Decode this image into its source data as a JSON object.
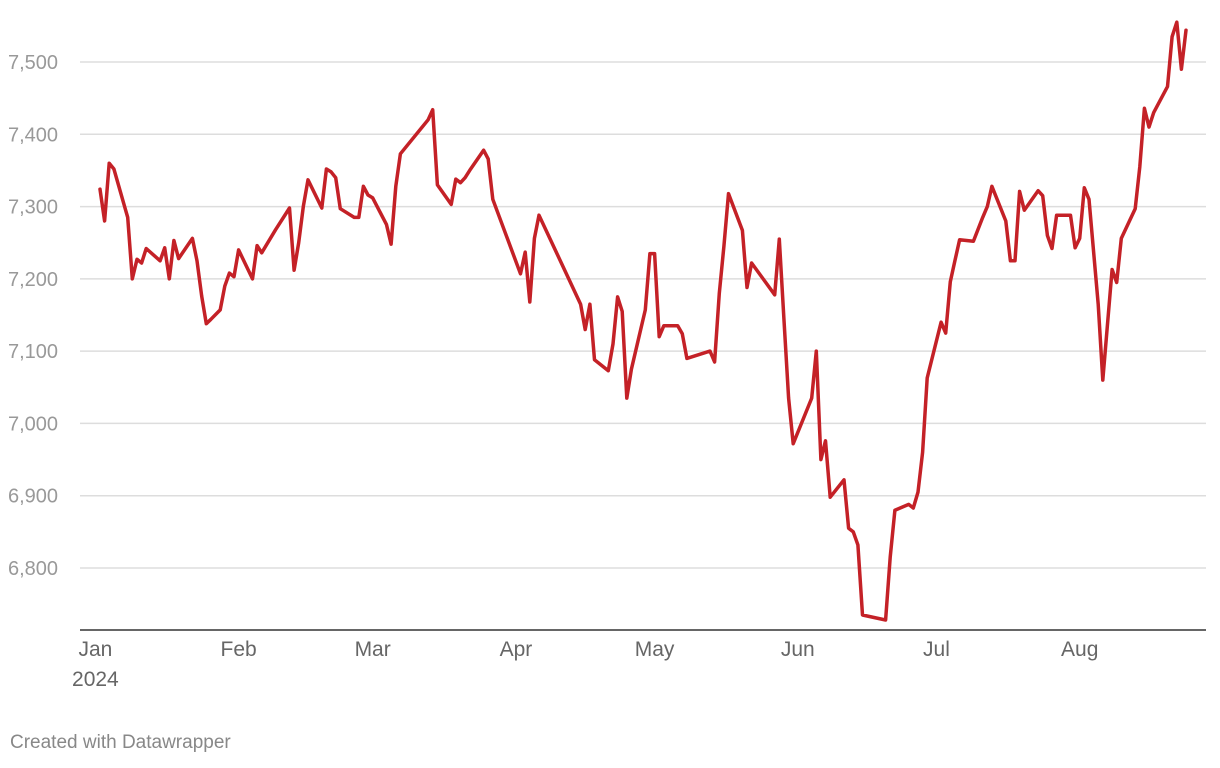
{
  "chart_data": {
    "type": "line",
    "title": "",
    "xlabel": "",
    "ylabel": "",
    "x_range": [
      "2024-01-01",
      "2024-08-27"
    ],
    "ylim": [
      6700,
      7570
    ],
    "y_ticks": [
      {
        "value": 6800,
        "label": "6,800"
      },
      {
        "value": 6900,
        "label": "6,900"
      },
      {
        "value": 7000,
        "label": "7,000"
      },
      {
        "value": 7100,
        "label": "7,100"
      },
      {
        "value": 7200,
        "label": "7,200"
      },
      {
        "value": 7300,
        "label": "7,300"
      },
      {
        "value": 7400,
        "label": "7,400"
      },
      {
        "value": 7500,
        "label": "7,500"
      }
    ],
    "x_ticks": [
      {
        "date": "2024-01-01",
        "label": "Jan",
        "sublabel": "2024"
      },
      {
        "date": "2024-02-01",
        "label": "Feb"
      },
      {
        "date": "2024-03-01",
        "label": "Mar"
      },
      {
        "date": "2024-04-01",
        "label": "Apr"
      },
      {
        "date": "2024-05-01",
        "label": "May"
      },
      {
        "date": "2024-06-01",
        "label": "Jun"
      },
      {
        "date": "2024-07-01",
        "label": "Jul"
      },
      {
        "date": "2024-08-01",
        "label": "Aug"
      }
    ],
    "grid": true,
    "series": [
      {
        "color": "#c42127",
        "points": [
          [
            "2024-01-02",
            7324
          ],
          [
            "2024-01-03",
            7280
          ],
          [
            "2024-01-04",
            7360
          ],
          [
            "2024-01-05",
            7352
          ],
          [
            "2024-01-08",
            7285
          ],
          [
            "2024-01-09",
            7200
          ],
          [
            "2024-01-10",
            7227
          ],
          [
            "2024-01-11",
            7222
          ],
          [
            "2024-01-12",
            7242
          ],
          [
            "2024-01-15",
            7225
          ],
          [
            "2024-01-16",
            7243
          ],
          [
            "2024-01-17",
            7200
          ],
          [
            "2024-01-18",
            7253
          ],
          [
            "2024-01-19",
            7228
          ],
          [
            "2024-01-22",
            7256
          ],
          [
            "2024-01-23",
            7225
          ],
          [
            "2024-01-24",
            7176
          ],
          [
            "2024-01-25",
            7138
          ],
          [
            "2024-01-26",
            7144
          ],
          [
            "2024-01-28",
            7157
          ],
          [
            "2024-01-29",
            7190
          ],
          [
            "2024-01-30",
            7208
          ],
          [
            "2024-01-31",
            7203
          ],
          [
            "2024-02-01",
            7240
          ],
          [
            "2024-02-04",
            7200
          ],
          [
            "2024-02-05",
            7246
          ],
          [
            "2024-02-06",
            7236
          ],
          [
            "2024-02-09",
            7268
          ],
          [
            "2024-02-12",
            7298
          ],
          [
            "2024-02-13",
            7212
          ],
          [
            "2024-02-14",
            7250
          ],
          [
            "2024-02-15",
            7300
          ],
          [
            "2024-02-16",
            7337
          ],
          [
            "2024-02-19",
            7298
          ],
          [
            "2024-02-20",
            7352
          ],
          [
            "2024-02-21",
            7348
          ],
          [
            "2024-02-22",
            7340
          ],
          [
            "2024-02-23",
            7297
          ],
          [
            "2024-02-26",
            7285
          ],
          [
            "2024-02-27",
            7285
          ],
          [
            "2024-02-28",
            7328
          ],
          [
            "2024-02-29",
            7316
          ],
          [
            "2024-03-01",
            7312
          ],
          [
            "2024-03-04",
            7275
          ],
          [
            "2024-03-05",
            7248
          ],
          [
            "2024-03-06",
            7328
          ],
          [
            "2024-03-07",
            7373
          ],
          [
            "2024-03-13",
            7420
          ],
          [
            "2024-03-14",
            7434
          ],
          [
            "2024-03-15",
            7330
          ],
          [
            "2024-03-18",
            7303
          ],
          [
            "2024-03-19",
            7338
          ],
          [
            "2024-03-20",
            7333
          ],
          [
            "2024-03-21",
            7340
          ],
          [
            "2024-03-22",
            7350
          ],
          [
            "2024-03-25",
            7378
          ],
          [
            "2024-03-26",
            7366
          ],
          [
            "2024-03-27",
            7310
          ],
          [
            "2024-04-02",
            7207
          ],
          [
            "2024-04-03",
            7237
          ],
          [
            "2024-04-04",
            7168
          ],
          [
            "2024-04-05",
            7256
          ],
          [
            "2024-04-06",
            7288
          ],
          [
            "2024-04-15",
            7165
          ],
          [
            "2024-04-16",
            7130
          ],
          [
            "2024-04-17",
            7165
          ],
          [
            "2024-04-18",
            7088
          ],
          [
            "2024-04-21",
            7073
          ],
          [
            "2024-04-22",
            7110
          ],
          [
            "2024-04-23",
            7175
          ],
          [
            "2024-04-24",
            7155
          ],
          [
            "2024-04-25",
            7035
          ],
          [
            "2024-04-26",
            7075
          ],
          [
            "2024-04-29",
            7157
          ],
          [
            "2024-04-30",
            7235
          ],
          [
            "2024-05-01",
            7235
          ],
          [
            "2024-05-02",
            7120
          ],
          [
            "2024-05-03",
            7135
          ],
          [
            "2024-05-06",
            7135
          ],
          [
            "2024-05-07",
            7124
          ],
          [
            "2024-05-08",
            7090
          ],
          [
            "2024-05-13",
            7100
          ],
          [
            "2024-05-14",
            7085
          ],
          [
            "2024-05-15",
            7180
          ],
          [
            "2024-05-16",
            7245
          ],
          [
            "2024-05-17",
            7318
          ],
          [
            "2024-05-20",
            7267
          ],
          [
            "2024-05-21",
            7188
          ],
          [
            "2024-05-22",
            7222
          ],
          [
            "2024-05-27",
            7178
          ],
          [
            "2024-05-28",
            7255
          ],
          [
            "2024-05-29",
            7145
          ],
          [
            "2024-05-30",
            7035
          ],
          [
            "2024-05-31",
            6972
          ],
          [
            "2024-06-04",
            7035
          ],
          [
            "2024-06-05",
            7100
          ],
          [
            "2024-06-06",
            6950
          ],
          [
            "2024-06-07",
            6976
          ],
          [
            "2024-06-08",
            6898
          ],
          [
            "2024-06-11",
            6922
          ],
          [
            "2024-06-12",
            6855
          ],
          [
            "2024-06-13",
            6850
          ],
          [
            "2024-06-14",
            6832
          ],
          [
            "2024-06-15",
            6735
          ],
          [
            "2024-06-20",
            6728
          ],
          [
            "2024-06-21",
            6815
          ],
          [
            "2024-06-22",
            6880
          ],
          [
            "2024-06-25",
            6888
          ],
          [
            "2024-06-26",
            6883
          ],
          [
            "2024-06-27",
            6905
          ],
          [
            "2024-06-28",
            6960
          ],
          [
            "2024-06-29",
            7063
          ],
          [
            "2024-07-02",
            7140
          ],
          [
            "2024-07-03",
            7125
          ],
          [
            "2024-07-04",
            7196
          ],
          [
            "2024-07-05",
            7225
          ],
          [
            "2024-07-06",
            7254
          ],
          [
            "2024-07-09",
            7252
          ],
          [
            "2024-07-11",
            7285
          ],
          [
            "2024-07-12",
            7300
          ],
          [
            "2024-07-13",
            7328
          ],
          [
            "2024-07-16",
            7280
          ],
          [
            "2024-07-17",
            7225
          ],
          [
            "2024-07-18",
            7225
          ],
          [
            "2024-07-19",
            7321
          ],
          [
            "2024-07-20",
            7295
          ],
          [
            "2024-07-23",
            7322
          ],
          [
            "2024-07-24",
            7315
          ],
          [
            "2024-07-25",
            7260
          ],
          [
            "2024-07-26",
            7242
          ],
          [
            "2024-07-27",
            7288
          ],
          [
            "2024-07-30",
            7288
          ],
          [
            "2024-07-31",
            7243
          ],
          [
            "2024-08-01",
            7256
          ],
          [
            "2024-08-02",
            7326
          ],
          [
            "2024-08-03",
            7310
          ],
          [
            "2024-08-05",
            7165
          ],
          [
            "2024-08-06",
            7060
          ],
          [
            "2024-08-08",
            7213
          ],
          [
            "2024-08-09",
            7195
          ],
          [
            "2024-08-10",
            7256
          ],
          [
            "2024-08-13",
            7297
          ],
          [
            "2024-08-14",
            7355
          ],
          [
            "2024-08-15",
            7436
          ],
          [
            "2024-08-16",
            7410
          ],
          [
            "2024-08-17",
            7430
          ],
          [
            "2024-08-20",
            7466
          ],
          [
            "2024-08-21",
            7535
          ],
          [
            "2024-08-22",
            7555
          ],
          [
            "2024-08-23",
            7490
          ],
          [
            "2024-08-24",
            7544
          ]
        ]
      }
    ]
  },
  "footer": {
    "credit": "Created with Datawrapper"
  },
  "colors": {
    "line": "#c42127",
    "gridline": "#dddddd",
    "axis_baseline": "#333333",
    "y_tick_text": "#999999",
    "x_tick_text": "#666666",
    "credit_text": "#888888"
  }
}
